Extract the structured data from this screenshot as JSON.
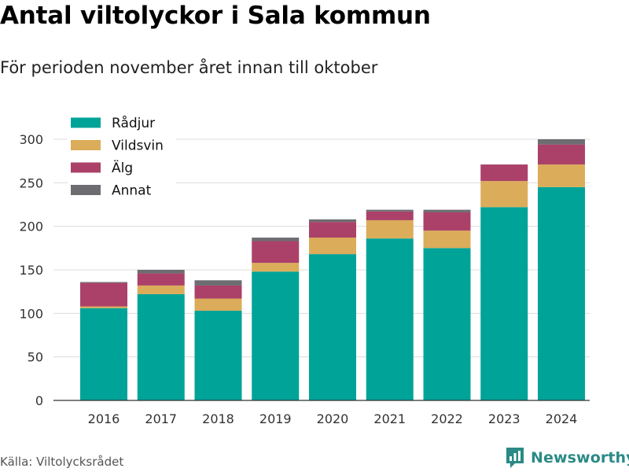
{
  "header": {
    "title": "Antal viltolyckor i Sala kommun",
    "subtitle": "För perioden november året innan till oktober"
  },
  "footer": {
    "source": "Källa: Viltolycksrådet",
    "brand": "Newsworthy",
    "brand_icon": "bar-chart-logo-icon",
    "brand_color": "#2b8a85"
  },
  "chart_data": {
    "type": "bar",
    "stacked": true,
    "categories": [
      "2016",
      "2017",
      "2018",
      "2019",
      "2020",
      "2021",
      "2022",
      "2023",
      "2024"
    ],
    "series": [
      {
        "name": "Rådjur",
        "color": "#00a398",
        "values": [
          106,
          122,
          103,
          148,
          168,
          186,
          175,
          222,
          245
        ]
      },
      {
        "name": "Vildsvin",
        "color": "#dbac5a",
        "values": [
          2,
          10,
          14,
          10,
          19,
          21,
          20,
          30,
          26
        ]
      },
      {
        "name": "Älg",
        "color": "#ab4169",
        "values": [
          27,
          14,
          15,
          25,
          18,
          10,
          21,
          19,
          23
        ]
      },
      {
        "name": "Annat",
        "color": "#6d6d71",
        "values": [
          1,
          4,
          6,
          4,
          3,
          2,
          3,
          0,
          6
        ]
      }
    ],
    "ylim": [
      0,
      300
    ],
    "yticks": [
      0,
      50,
      100,
      150,
      200,
      250,
      300
    ],
    "grid": true,
    "legend_position": "top-left"
  }
}
